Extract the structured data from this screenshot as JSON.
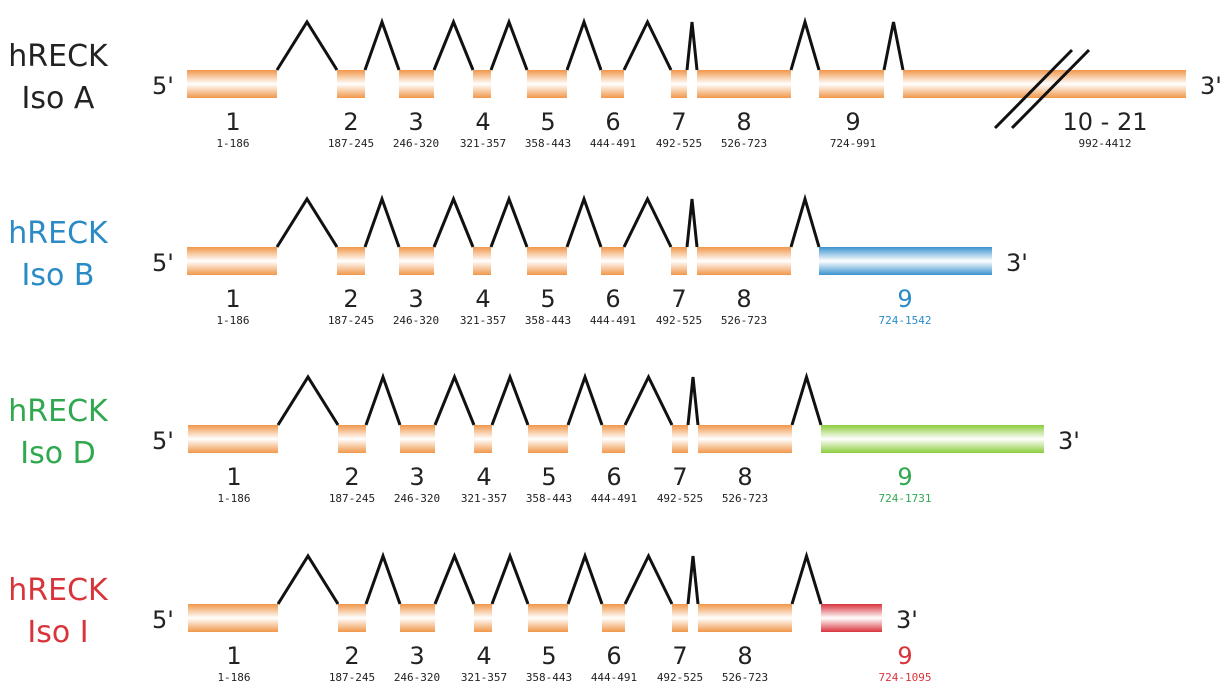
{
  "colors": {
    "exon": "#f0974a",
    "iso_a": "#222222",
    "iso_b": "#2a8bc7",
    "iso_d": "#2fa84f",
    "iso_i": "#d9343a",
    "iso_b_exon": "#3a92cf",
    "iso_d_exon": "#8ccc3c",
    "iso_i_exon": "#d8343d"
  },
  "isoforms": [
    {
      "id": "A",
      "name": "hRECK",
      "sub": "Iso A",
      "five_prime": "5'",
      "three_prime": "3'",
      "exons": [
        {
          "num": "1",
          "range": "1-186"
        },
        {
          "num": "2",
          "range": "187-245"
        },
        {
          "num": "3",
          "range": "246-320"
        },
        {
          "num": "4",
          "range": "321-357"
        },
        {
          "num": "5",
          "range": "358-443"
        },
        {
          "num": "6",
          "range": "444-491"
        },
        {
          "num": "7",
          "range": "492-525"
        },
        {
          "num": "8",
          "range": "526-723"
        },
        {
          "num": "9",
          "range": "724-991"
        },
        {
          "num": "10 - 21",
          "range": "992-4412"
        }
      ]
    },
    {
      "id": "B",
      "name": "hRECK",
      "sub": "Iso B",
      "five_prime": "5'",
      "three_prime": "3'",
      "exons": [
        {
          "num": "1",
          "range": "1-186"
        },
        {
          "num": "2",
          "range": "187-245"
        },
        {
          "num": "3",
          "range": "246-320"
        },
        {
          "num": "4",
          "range": "321-357"
        },
        {
          "num": "5",
          "range": "358-443"
        },
        {
          "num": "6",
          "range": "444-491"
        },
        {
          "num": "7",
          "range": "492-525"
        },
        {
          "num": "8",
          "range": "526-723"
        },
        {
          "num": "9",
          "range": "724-1542"
        }
      ]
    },
    {
      "id": "D",
      "name": "hRECK",
      "sub": "Iso D",
      "five_prime": "5'",
      "three_prime": "3'",
      "exons": [
        {
          "num": "1",
          "range": "1-186"
        },
        {
          "num": "2",
          "range": "187-245"
        },
        {
          "num": "3",
          "range": "246-320"
        },
        {
          "num": "4",
          "range": "321-357"
        },
        {
          "num": "5",
          "range": "358-443"
        },
        {
          "num": "6",
          "range": "444-491"
        },
        {
          "num": "7",
          "range": "492-525"
        },
        {
          "num": "8",
          "range": "526-723"
        },
        {
          "num": "9",
          "range": "724-1731"
        }
      ]
    },
    {
      "id": "I",
      "name": "hRECK",
      "sub": "Iso I",
      "five_prime": "5'",
      "three_prime": "3'",
      "exons": [
        {
          "num": "1",
          "range": "1-186"
        },
        {
          "num": "2",
          "range": "187-245"
        },
        {
          "num": "3",
          "range": "246-320"
        },
        {
          "num": "4",
          "range": "321-357"
        },
        {
          "num": "5",
          "range": "358-443"
        },
        {
          "num": "6",
          "range": "444-491"
        },
        {
          "num": "7",
          "range": "492-525"
        },
        {
          "num": "8",
          "range": "526-723"
        },
        {
          "num": "9",
          "range": "724-1095"
        }
      ]
    }
  ]
}
